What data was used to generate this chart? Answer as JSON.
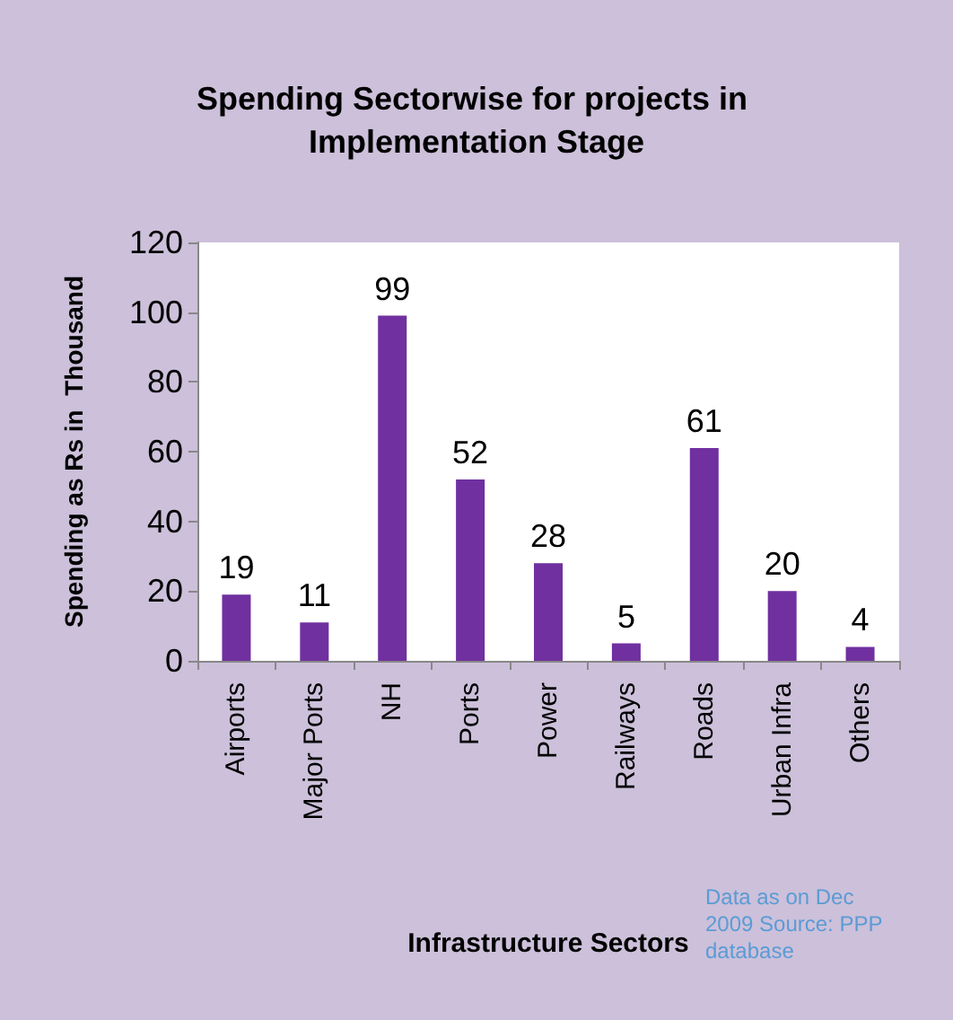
{
  "chart_data": {
    "type": "bar",
    "title": "Spending Sectorwise for projects in Implementation Stage",
    "xlabel": "Infrastructure Sectors",
    "ylabel": "Spending as Rs in  Thousand",
    "categories": [
      "Airports",
      "Major Ports",
      "NH",
      "Ports",
      "Power",
      "Railways",
      "Roads",
      "Urban Infra",
      "Others"
    ],
    "values": [
      19,
      11,
      99,
      52,
      28,
      5,
      61,
      20,
      4
    ],
    "color": "#7030a0",
    "ylim": [
      0,
      120
    ],
    "yticks": [
      0,
      20,
      40,
      60,
      80,
      100,
      120
    ],
    "grid": false,
    "data_labels": true,
    "annotations": [
      "Data as on Dec 2009 Source: PPP database"
    ]
  }
}
